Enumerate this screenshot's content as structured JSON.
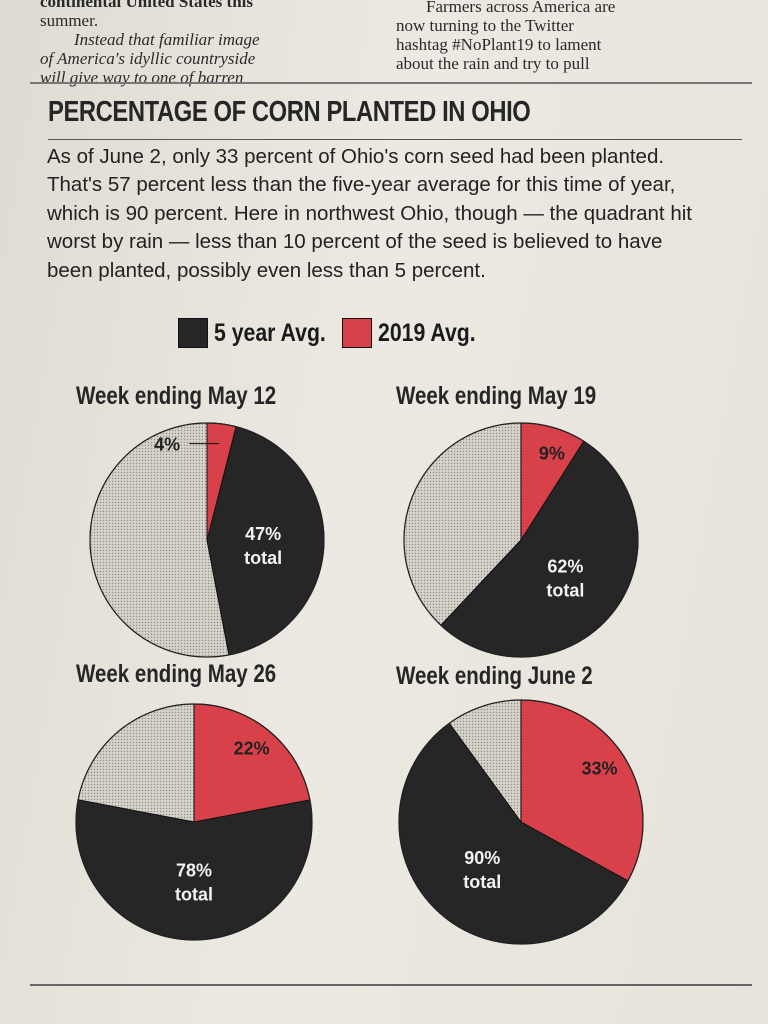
{
  "snippets": {
    "left_lines": [
      "continental United States this",
      "summer.",
      "Instead that familiar image",
      "of America's idyllic countryside",
      "will give way to one of barren"
    ],
    "right_lines": [
      "Farmers across America are",
      "now turning to the Twitter",
      "hashtag #NoPlant19 to lament",
      "about the rain and try to pull"
    ]
  },
  "title": "PERCENTAGE OF CORN PLANTED IN OHIO",
  "description": "As of June 2, only 33 percent of Ohio's corn seed had been planted. That's 57 percent less than the five-year average for this time of year, which is 90 percent. Here in northwest Ohio, though — the quadrant hit worst by rain — less than 10 percent of the seed is believed to have been planted, possibly even less than 5 percent.",
  "colors": {
    "five_year": "#262626",
    "year_2019": "#d9414a",
    "remaining": "#cdcac2"
  },
  "legend": {
    "five_year": "5 year Avg.",
    "year_2019": "2019 Avg."
  },
  "chart_data": [
    {
      "type": "pie",
      "title": "Week ending May 12",
      "values": {
        "five_year": 47,
        "year_2019": 4
      },
      "labels": {
        "year_2019": "4%",
        "five_year_line1": "47%",
        "five_year_line2": "total"
      }
    },
    {
      "type": "pie",
      "title": "Week ending May 19",
      "values": {
        "five_year": 62,
        "year_2019": 9
      },
      "labels": {
        "year_2019": "9%",
        "five_year_line1": "62%",
        "five_year_line2": "total"
      }
    },
    {
      "type": "pie",
      "title": "Week ending May 26",
      "values": {
        "five_year": 78,
        "year_2019": 22
      },
      "labels": {
        "year_2019": "22%",
        "five_year_line1": "78%",
        "five_year_line2": "total"
      }
    },
    {
      "type": "pie",
      "title": "Week ending June 2",
      "values": {
        "five_year": 90,
        "year_2019": 33
      },
      "labels": {
        "year_2019": "33%",
        "five_year_line1": "90%",
        "five_year_line2": "total"
      }
    }
  ]
}
